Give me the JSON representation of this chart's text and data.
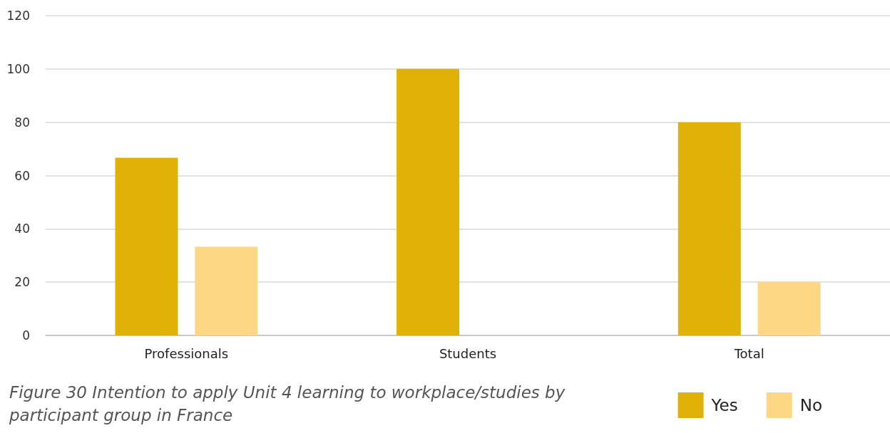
{
  "chart_data": {
    "type": "bar",
    "title": "Figure 30 Intention to apply Unit 4 learning to workplace/studies by participant group in France",
    "categories": [
      "Professionals",
      "Students",
      "Total"
    ],
    "series": [
      {
        "name": "Yes",
        "color": "#e0b106",
        "values": [
          66.7,
          100,
          80
        ]
      },
      {
        "name": "No",
        "color": "#fdd784",
        "values": [
          33.3,
          0,
          20
        ]
      }
    ],
    "ylim": [
      0,
      120
    ],
    "yticks": [
      0,
      20,
      40,
      60,
      80,
      100,
      120
    ],
    "grid": "y",
    "legend": "bottom right"
  }
}
